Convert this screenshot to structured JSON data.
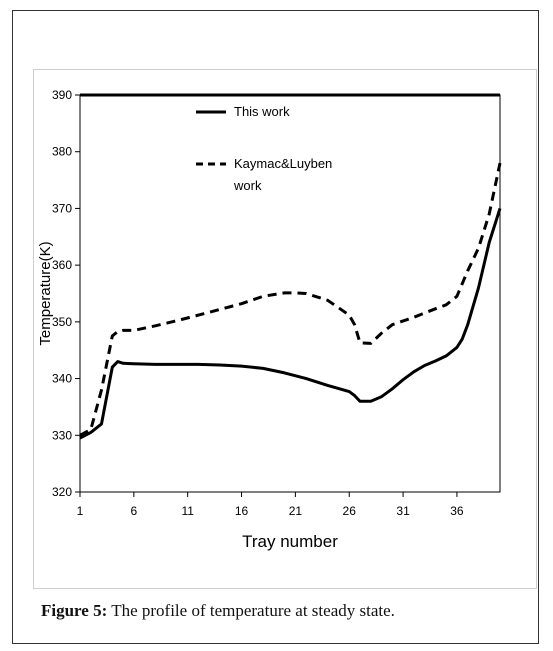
{
  "figure": {
    "caption_label": "Figure 5:",
    "caption_text": " The profile of temperature at steady state."
  },
  "chart_data": {
    "type": "line",
    "xlabel": "Tray number",
    "ylabel": "Temperature(K)",
    "xlim": [
      1,
      40
    ],
    "ylim": [
      320,
      390
    ],
    "x_ticks": [
      1,
      6,
      11,
      16,
      21,
      26,
      31,
      36
    ],
    "y_ticks": [
      320,
      330,
      340,
      350,
      360,
      370,
      380,
      390
    ],
    "legend_position": "top-center",
    "grid": false,
    "series": [
      {
        "name": "This work",
        "style": "solid",
        "color": "#000000",
        "x": [
          1,
          2,
          3,
          4,
          4.5,
          5,
          6,
          8,
          10,
          12,
          14,
          16,
          18,
          20,
          22,
          24,
          26,
          26.5,
          27,
          28,
          29,
          30,
          31,
          32,
          33,
          34,
          35,
          36,
          36.5,
          37,
          38,
          39,
          40
        ],
        "y": [
          329.5,
          330.5,
          332,
          342,
          343,
          342.7,
          342.6,
          342.5,
          342.5,
          342.5,
          342.4,
          342.2,
          341.8,
          341,
          340,
          338.8,
          337.7,
          337,
          336,
          336,
          336.8,
          338.2,
          339.8,
          341.2,
          342.3,
          343.1,
          344,
          345.5,
          347,
          349.5,
          356,
          364,
          370
        ]
      },
      {
        "name": "Kaymac&Luyben\nwork",
        "style": "dashed",
        "color": "#000000",
        "x": [
          1,
          2,
          3,
          4,
          4.5,
          5,
          6,
          8,
          10,
          12,
          14,
          16,
          18,
          20,
          21,
          22,
          24,
          26,
          26.5,
          27,
          28,
          29,
          30,
          32,
          34,
          35,
          36,
          37,
          38,
          39,
          40
        ],
        "y": [
          330,
          331,
          338,
          347.5,
          348.3,
          348.5,
          348.5,
          349.3,
          350.2,
          351.2,
          352.2,
          353.2,
          354.5,
          355.1,
          355.1,
          355,
          353.8,
          351.2,
          349.5,
          346.3,
          346.2,
          348,
          349.5,
          350.8,
          352.3,
          353,
          354.5,
          359,
          363,
          369,
          378
        ]
      }
    ]
  }
}
